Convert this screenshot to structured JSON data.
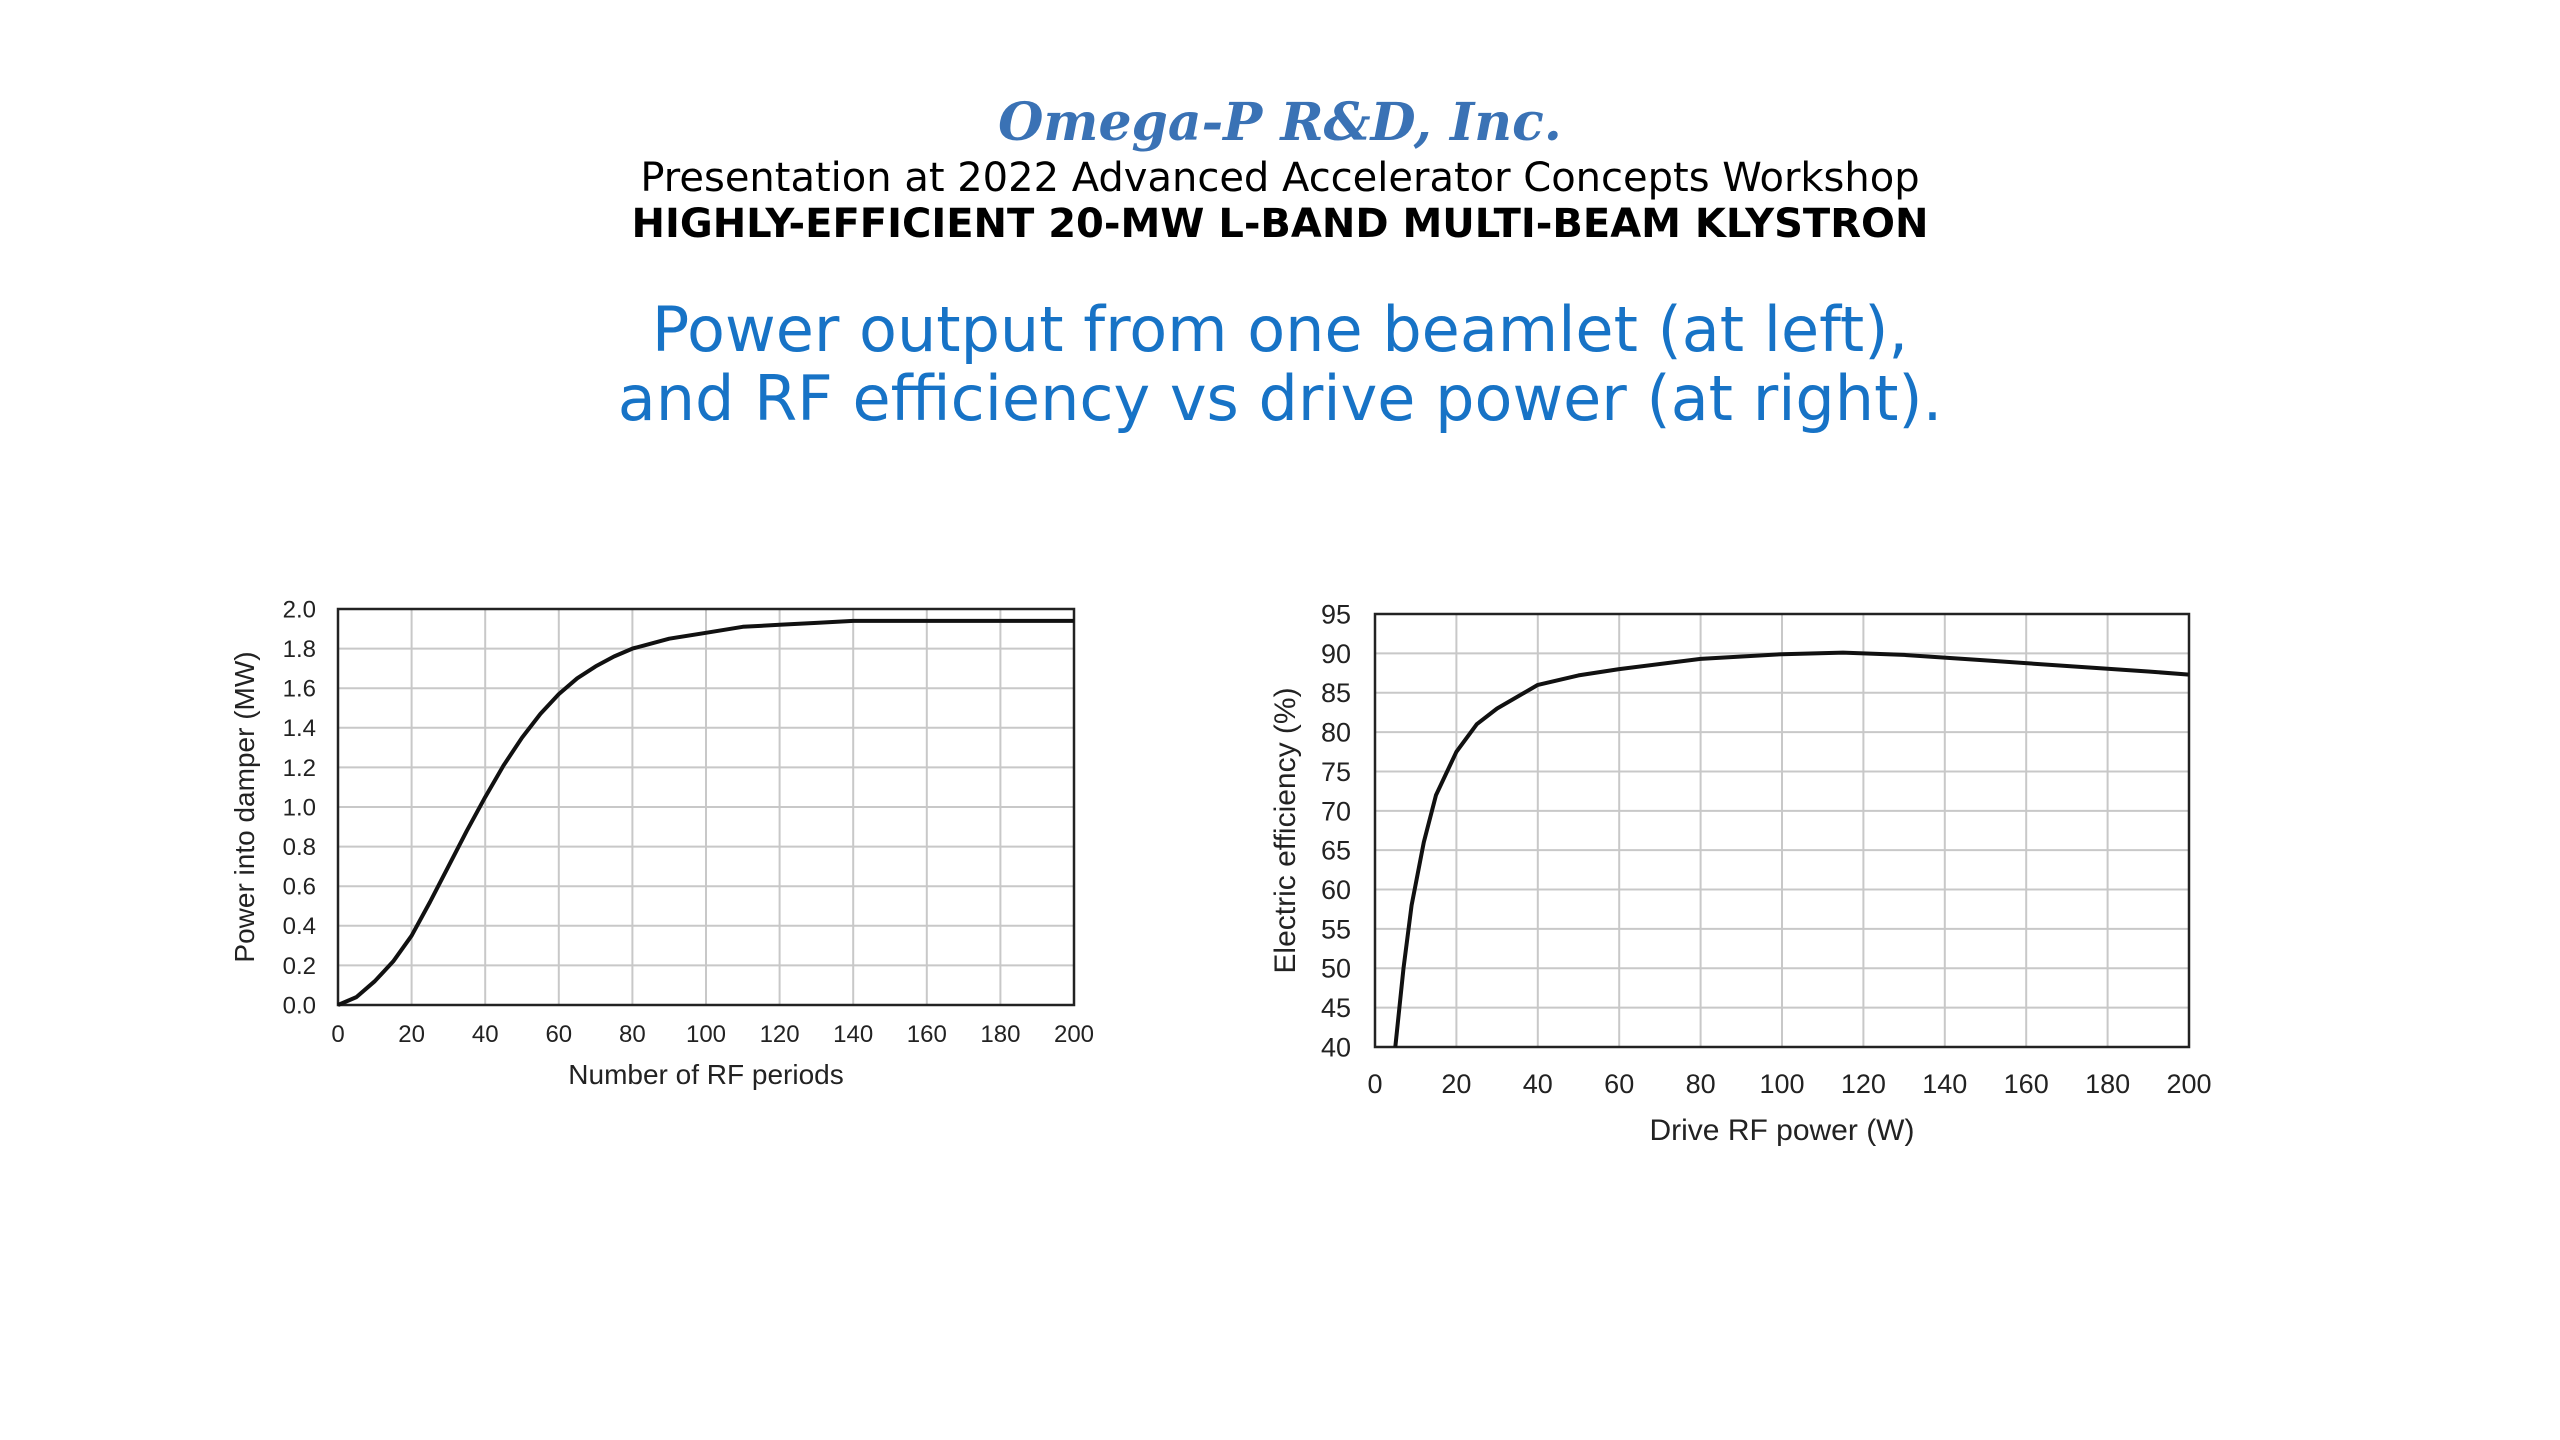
{
  "header": {
    "company": "Omega-P R&D, Inc.",
    "presentation": "Presentation at 2022 Advanced Accelerator Concepts Workshop",
    "klystron": "HIGHLY-EFFICIENT 20-MW L-BAND MULTI-BEAM KLYSTRON"
  },
  "subtitle": {
    "line1": "Power output from one beamlet (at left),",
    "line2": "and RF efficiency vs drive power (at right)."
  },
  "colors": {
    "company": "#3a72b5",
    "subtitle": "#1773c6",
    "curve": "#111111",
    "grid": "#c8c8c8"
  },
  "chart_data": [
    {
      "type": "line",
      "title": "",
      "xlabel": "Number of RF periods",
      "ylabel": "Power into damper (MW)",
      "xlim": [
        0,
        200
      ],
      "ylim": [
        0,
        2.0
      ],
      "xticks": [
        "0",
        "20",
        "40",
        "60",
        "80",
        "100",
        "120",
        "140",
        "160",
        "180",
        "200"
      ],
      "yticks": [
        "0.0",
        "0.2",
        "0.4",
        "0.6",
        "0.8",
        "1.0",
        "1.2",
        "1.4",
        "1.6",
        "1.8",
        "2.0"
      ],
      "grid": true,
      "series": [
        {
          "x": [
            0,
            5,
            10,
            15,
            20,
            25,
            30,
            35,
            40,
            45,
            50,
            55,
            60,
            65,
            70,
            75,
            80,
            90,
            100,
            110,
            120,
            130,
            140,
            160,
            180,
            200
          ],
          "y": [
            0.0,
            0.04,
            0.12,
            0.22,
            0.35,
            0.52,
            0.7,
            0.88,
            1.05,
            1.21,
            1.35,
            1.47,
            1.57,
            1.65,
            1.71,
            1.76,
            1.8,
            1.85,
            1.88,
            1.91,
            1.92,
            1.93,
            1.94,
            1.94,
            1.94,
            1.94
          ]
        }
      ]
    },
    {
      "type": "line",
      "title": "",
      "xlabel": "Drive RF power (W)",
      "ylabel": "Electric efficiency (%)",
      "xlim": [
        0,
        200
      ],
      "ylim": [
        40,
        95
      ],
      "xticks": [
        "0",
        "20",
        "40",
        "60",
        "80",
        "100",
        "120",
        "140",
        "160",
        "180",
        "200"
      ],
      "yticks": [
        "40",
        "45",
        "50",
        "55",
        "60",
        "65",
        "70",
        "75",
        "80",
        "85",
        "90",
        "95"
      ],
      "grid": true,
      "series": [
        {
          "x": [
            5,
            7,
            9,
            12,
            15,
            20,
            25,
            30,
            40,
            50,
            60,
            80,
            100,
            115,
            130,
            150,
            170,
            190,
            200
          ],
          "y": [
            40,
            50,
            58,
            66,
            72,
            77.5,
            81,
            83,
            86,
            87.2,
            88,
            89.3,
            89.9,
            90.1,
            89.8,
            89.1,
            88.4,
            87.7,
            87.3
          ]
        }
      ]
    }
  ]
}
